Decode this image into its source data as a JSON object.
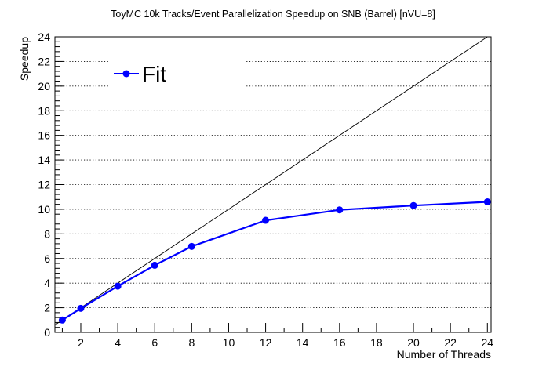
{
  "chart_data": {
    "type": "line",
    "title": "ToyMC 10k Tracks/Event Parallelization Speedup on SNB (Barrel) [nVU=8]",
    "xlabel": "Number of Threads",
    "ylabel": "Speedup",
    "xlim": [
      0.6,
      24.2
    ],
    "ylim": [
      0,
      24
    ],
    "xticks": [
      2,
      4,
      6,
      8,
      10,
      12,
      14,
      16,
      18,
      20,
      22,
      24
    ],
    "yticks": [
      0,
      2,
      4,
      6,
      8,
      10,
      12,
      14,
      16,
      18,
      20,
      22,
      24
    ],
    "grid_y": true,
    "grid_x": false,
    "legend_position": "top-left",
    "series": [
      {
        "name": "Fit",
        "color": "#0000ff",
        "marker": "circle",
        "x": [
          1,
          2,
          4,
          6,
          8,
          12,
          16,
          20,
          24
        ],
        "y": [
          1.0,
          1.95,
          3.75,
          5.45,
          6.98,
          9.1,
          9.95,
          10.3,
          10.6
        ]
      }
    ],
    "reference_line": {
      "x": [
        0.6,
        24.2
      ],
      "y": [
        0.6,
        24.2
      ],
      "color": "#000000"
    }
  }
}
